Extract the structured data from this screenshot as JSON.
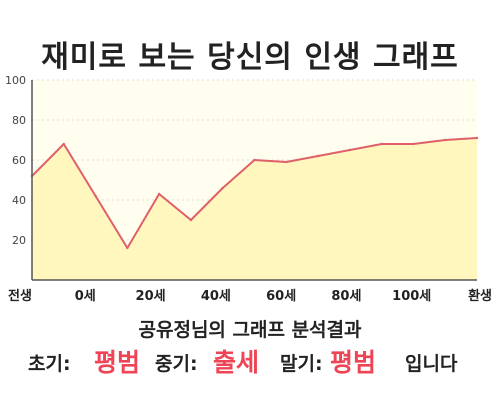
{
  "title": "재미로 보는 당신의 인생 그래프",
  "summary": "공유정님의 그래프 분석결과",
  "result": {
    "early_label": "초기:",
    "early_value": "평범",
    "mid_label": "중기:",
    "mid_value": "출세",
    "late_label": "말기:",
    "late_value": "평범",
    "ending": "입니다"
  },
  "colors": {
    "line": "#e0606a",
    "fill": "#fff6b8",
    "background": "#fffeef",
    "highlight": "#ee4455"
  },
  "chart_data": {
    "type": "area",
    "title": "",
    "xlabel": "",
    "ylabel": "",
    "ylim": [
      0,
      100
    ],
    "yticks": [
      20,
      40,
      60,
      80,
      100
    ],
    "xticks": [
      "전생",
      "0세",
      "20세",
      "40세",
      "60세",
      "80세",
      "100세",
      "환생"
    ],
    "grid": true,
    "x": [
      "전생",
      "0세",
      "",
      "20세",
      "",
      "",
      "40세",
      "",
      "60세",
      "",
      "80세",
      "",
      "100세",
      "",
      "환생"
    ],
    "values": [
      52,
      68,
      42,
      16,
      43,
      30,
      46,
      60,
      59,
      62,
      65,
      68,
      68,
      70,
      71
    ]
  }
}
